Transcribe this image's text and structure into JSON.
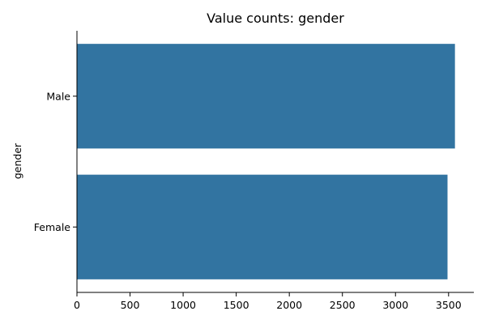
{
  "chart_data": {
    "type": "bar",
    "orientation": "horizontal",
    "title": "Value counts: gender",
    "xlabel": "",
    "ylabel": "gender",
    "categories": [
      "Male",
      "Female"
    ],
    "values": [
      3560,
      3490
    ],
    "xlim": [
      0,
      3738
    ],
    "xticks": [
      0,
      500,
      1000,
      1500,
      2000,
      2500,
      3000,
      3500
    ],
    "grid": false,
    "legend": "none",
    "colors": {
      "bar": "#3274a1",
      "axis": "#000000"
    }
  }
}
